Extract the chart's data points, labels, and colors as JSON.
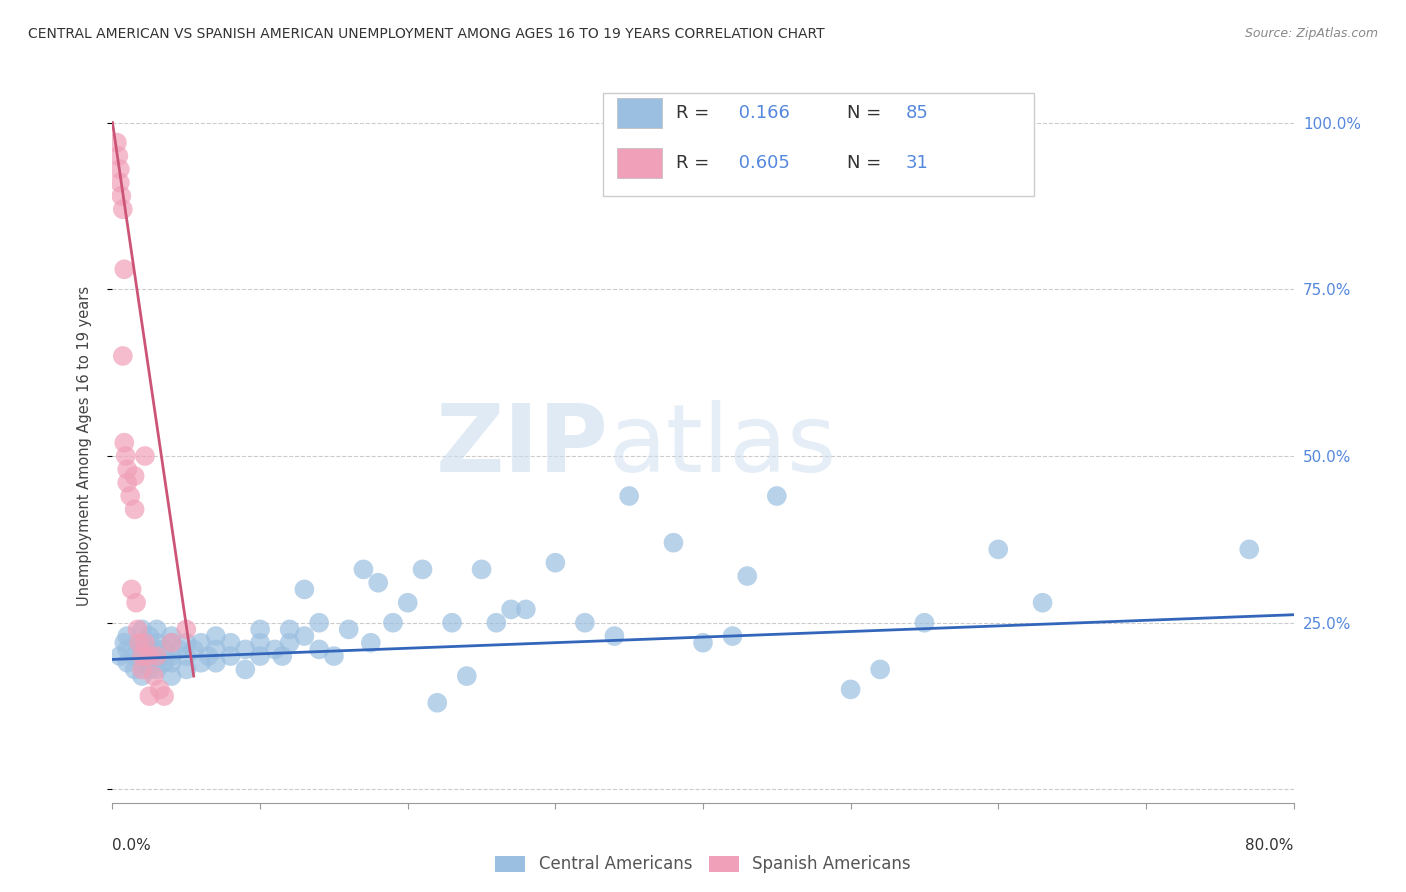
{
  "title": "CENTRAL AMERICAN VS SPANISH AMERICAN UNEMPLOYMENT AMONG AGES 16 TO 19 YEARS CORRELATION CHART",
  "source": "Source: ZipAtlas.com",
  "ylabel": "Unemployment Among Ages 16 to 19 years",
  "xlim": [
    0.0,
    0.8
  ],
  "ylim": [
    -0.02,
    1.05
  ],
  "yticks": [
    0.0,
    0.25,
    0.5,
    0.75,
    1.0
  ],
  "ytick_labels": [
    "",
    "25.0%",
    "50.0%",
    "75.0%",
    "100.0%"
  ],
  "xticks": [
    0.0,
    0.1,
    0.2,
    0.3,
    0.4,
    0.5,
    0.6,
    0.7,
    0.8
  ],
  "watermark_zip": "ZIP",
  "watermark_atlas": "atlas",
  "blue_R": 0.166,
  "blue_N": 85,
  "pink_R": 0.605,
  "pink_N": 31,
  "blue_color": "#9bbfe0",
  "pink_color": "#f0a0b8",
  "blue_line_color": "#3366bb",
  "pink_line_color": "#cc5577",
  "blue_scatter_x": [
    0.005,
    0.008,
    0.01,
    0.01,
    0.01,
    0.015,
    0.015,
    0.02,
    0.02,
    0.02,
    0.02,
    0.02,
    0.02,
    0.025,
    0.025,
    0.025,
    0.025,
    0.03,
    0.03,
    0.03,
    0.03,
    0.03,
    0.035,
    0.035,
    0.04,
    0.04,
    0.04,
    0.04,
    0.04,
    0.045,
    0.05,
    0.05,
    0.05,
    0.055,
    0.06,
    0.06,
    0.065,
    0.07,
    0.07,
    0.07,
    0.08,
    0.08,
    0.09,
    0.09,
    0.1,
    0.1,
    0.1,
    0.11,
    0.115,
    0.12,
    0.12,
    0.13,
    0.13,
    0.14,
    0.14,
    0.15,
    0.16,
    0.17,
    0.175,
    0.18,
    0.19,
    0.2,
    0.21,
    0.22,
    0.23,
    0.24,
    0.25,
    0.26,
    0.27,
    0.28,
    0.3,
    0.32,
    0.34,
    0.35,
    0.38,
    0.4,
    0.42,
    0.43,
    0.45,
    0.5,
    0.52,
    0.55,
    0.6,
    0.63,
    0.77
  ],
  "blue_scatter_y": [
    0.2,
    0.22,
    0.19,
    0.21,
    0.23,
    0.18,
    0.2,
    0.17,
    0.19,
    0.2,
    0.21,
    0.22,
    0.24,
    0.18,
    0.2,
    0.21,
    0.23,
    0.18,
    0.19,
    0.21,
    0.22,
    0.24,
    0.19,
    0.21,
    0.17,
    0.19,
    0.2,
    0.22,
    0.23,
    0.21,
    0.18,
    0.2,
    0.22,
    0.21,
    0.19,
    0.22,
    0.2,
    0.19,
    0.21,
    0.23,
    0.2,
    0.22,
    0.18,
    0.21,
    0.2,
    0.22,
    0.24,
    0.21,
    0.2,
    0.22,
    0.24,
    0.23,
    0.3,
    0.21,
    0.25,
    0.2,
    0.24,
    0.33,
    0.22,
    0.31,
    0.25,
    0.28,
    0.33,
    0.13,
    0.25,
    0.17,
    0.33,
    0.25,
    0.27,
    0.27,
    0.34,
    0.25,
    0.23,
    0.44,
    0.37,
    0.22,
    0.23,
    0.32,
    0.44,
    0.15,
    0.18,
    0.25,
    0.36,
    0.28,
    0.36
  ],
  "pink_scatter_x": [
    0.003,
    0.004,
    0.005,
    0.005,
    0.006,
    0.007,
    0.007,
    0.008,
    0.008,
    0.009,
    0.01,
    0.01,
    0.012,
    0.013,
    0.015,
    0.015,
    0.016,
    0.017,
    0.018,
    0.02,
    0.02,
    0.022,
    0.022,
    0.025,
    0.025,
    0.028,
    0.03,
    0.032,
    0.035,
    0.04,
    0.05
  ],
  "pink_scatter_y": [
    0.97,
    0.95,
    0.93,
    0.91,
    0.89,
    0.87,
    0.65,
    0.78,
    0.52,
    0.5,
    0.48,
    0.46,
    0.44,
    0.3,
    0.42,
    0.47,
    0.28,
    0.24,
    0.22,
    0.2,
    0.18,
    0.5,
    0.22,
    0.2,
    0.14,
    0.17,
    0.2,
    0.15,
    0.14,
    0.22,
    0.24
  ],
  "blue_trend_x": [
    0.0,
    0.8
  ],
  "blue_trend_y": [
    0.195,
    0.262
  ],
  "pink_trend_x": [
    0.0,
    0.055
  ],
  "pink_trend_y": [
    1.0,
    0.17
  ]
}
